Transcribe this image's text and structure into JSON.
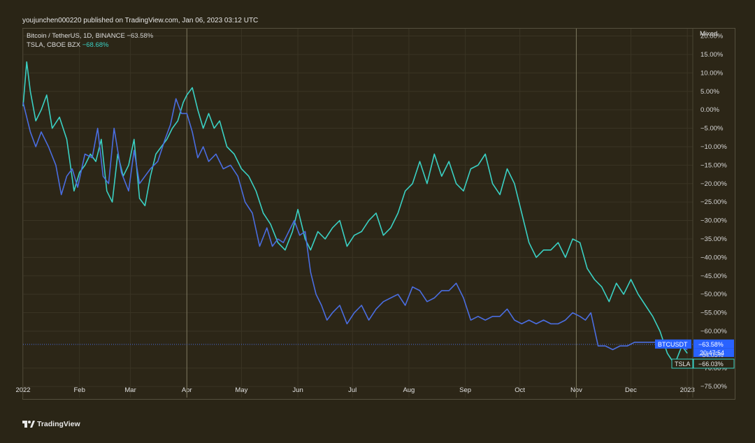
{
  "publisher": "youjunchen000220 published on TradingView.com, Jan 06, 2023 03:12 UTC",
  "scale_mode": "Mixed",
  "brand": "TradingView",
  "legend": [
    {
      "name": "Bitcoin / TetherUS, 1D, BINANCE",
      "value": "−63.58%"
    },
    {
      "name": "TSLA, CBOE BZX",
      "value": "−68.68%"
    }
  ],
  "price_tags": [
    {
      "label": "BTCUSDT",
      "value": "−63.58%",
      "sub": "20:47:54",
      "color": "#2962ff"
    },
    {
      "label": "",
      "value": "−64.05%",
      "sub": "",
      "color": "#2a2516"
    },
    {
      "label": "TSLA",
      "value": "−66.03%",
      "sub": "",
      "color": "#3ad0c3"
    }
  ],
  "colors": {
    "background": "#2a2516",
    "btc": "#4a6de0",
    "tsla": "#3ad0c3",
    "grid": "#3a3424",
    "text": "#d8d8d8"
  },
  "chart_data": {
    "type": "line",
    "y_unit": "%",
    "ylim": [
      -78,
      22
    ],
    "xlim": [
      0,
      368
    ],
    "y_ticks": [
      "20.00%",
      "15.00%",
      "10.00%",
      "5.00%",
      "0.00%",
      "−5.00%",
      "−10.00%",
      "−15.00%",
      "−20.00%",
      "−25.00%",
      "−30.00%",
      "−35.00%",
      "−40.00%",
      "−45.00%",
      "−50.00%",
      "−55.00%",
      "−60.00%",
      "−70.00%",
      "−75.00%"
    ],
    "y_tick_values": [
      20,
      15,
      10,
      5,
      0,
      -5,
      -10,
      -15,
      -20,
      -25,
      -30,
      -35,
      -40,
      -45,
      -50,
      -55,
      -60,
      -70,
      -75
    ],
    "x_ticks": [
      "2022",
      "Feb",
      "Mar",
      "Apr",
      "May",
      "Jun",
      "Jul",
      "Aug",
      "Sep",
      "Oct",
      "Nov",
      "Dec",
      "2023"
    ],
    "x_tick_days": [
      0,
      31,
      59,
      90,
      120,
      151,
      181,
      212,
      243,
      273,
      304,
      334,
      365
    ],
    "grid": true,
    "crosshair_days": [
      90,
      304
    ],
    "series": [
      {
        "name": "Bitcoin / TetherUS",
        "color": "#4a6de0",
        "x": [
          0,
          4,
          7,
          10,
          14,
          18,
          21,
          24,
          27,
          30,
          34,
          38,
          41,
          44,
          47,
          50,
          54,
          58,
          61,
          64,
          67,
          70,
          74,
          78,
          81,
          84,
          87,
          90,
          93,
          96,
          99,
          102,
          106,
          110,
          114,
          118,
          122,
          126,
          130,
          134,
          137,
          140,
          143,
          146,
          149,
          152,
          155,
          158,
          161,
          164,
          167,
          170,
          174,
          178,
          182,
          186,
          190,
          194,
          198,
          202,
          206,
          210,
          214,
          218,
          222,
          226,
          230,
          234,
          238,
          242,
          246,
          250,
          254,
          258,
          262,
          266,
          270,
          274,
          278,
          282,
          286,
          290,
          294,
          298,
          302,
          306,
          309,
          312,
          316,
          320,
          324,
          328,
          332,
          336,
          340,
          344,
          348,
          352,
          356,
          360,
          365
        ],
        "y": [
          2,
          -6,
          -10,
          -6,
          -10,
          -15,
          -23,
          -18,
          -16,
          -21,
          -12,
          -13,
          -5,
          -18,
          -20,
          -5,
          -17,
          -22,
          -11,
          -20,
          -18,
          -16,
          -14,
          -8,
          -4,
          3,
          -1,
          -1,
          -6,
          -13,
          -10,
          -14,
          -12,
          -16,
          -15,
          -18,
          -25,
          -28,
          -37,
          -32,
          -37,
          -35,
          -36,
          -33,
          -30,
          -34,
          -33,
          -44,
          -50,
          -53,
          -57,
          -55,
          -53,
          -58,
          -55,
          -53,
          -57,
          -54,
          -52,
          -51,
          -50,
          -53,
          -48,
          -49,
          -52,
          -51,
          -49,
          -49,
          -47,
          -51,
          -57,
          -56,
          -57,
          -56,
          -56,
          -54,
          -57,
          -58,
          -57,
          -58,
          -57,
          -58,
          -58,
          -57,
          -55,
          -56,
          -57,
          -55,
          -64,
          -64,
          -65,
          -64,
          -64,
          -63,
          -63,
          -63,
          -63,
          -63,
          -63,
          -64,
          -65
        ]
      },
      {
        "name": "TSLA",
        "color": "#3ad0c3",
        "x": [
          0,
          2,
          4,
          7,
          10,
          13,
          16,
          20,
          24,
          28,
          31,
          34,
          37,
          40,
          43,
          46,
          49,
          52,
          55,
          58,
          61,
          64,
          67,
          70,
          73,
          76,
          79,
          82,
          85,
          88,
          90,
          93,
          96,
          99,
          102,
          105,
          108,
          112,
          116,
          120,
          124,
          128,
          132,
          136,
          140,
          144,
          148,
          151,
          155,
          158,
          162,
          166,
          170,
          174,
          178,
          182,
          186,
          190,
          194,
          198,
          202,
          206,
          210,
          214,
          218,
          222,
          226,
          230,
          234,
          238,
          242,
          246,
          250,
          254,
          258,
          262,
          266,
          270,
          274,
          278,
          282,
          286,
          290,
          294,
          298,
          302,
          306,
          310,
          314,
          318,
          322,
          326,
          330,
          334,
          338,
          342,
          346,
          350,
          354,
          358,
          362,
          365
        ],
        "y": [
          1,
          13,
          5,
          -3,
          0,
          4,
          -5,
          -2,
          -8,
          -22,
          -17,
          -15,
          -12,
          -14,
          -8,
          -22,
          -25,
          -12,
          -18,
          -15,
          -8,
          -24,
          -26,
          -18,
          -12,
          -10,
          -8,
          -5,
          -3,
          2,
          4,
          6,
          0,
          -5,
          -1,
          -5,
          -3,
          -10,
          -12,
          -16,
          -18,
          -22,
          -28,
          -31,
          -36,
          -38,
          -33,
          -27,
          -35,
          -38,
          -33,
          -35,
          -32,
          -30,
          -37,
          -34,
          -33,
          -30,
          -28,
          -34,
          -32,
          -28,
          -22,
          -20,
          -14,
          -20,
          -12,
          -18,
          -14,
          -20,
          -22,
          -16,
          -15,
          -12,
          -20,
          -23,
          -16,
          -20,
          -28,
          -36,
          -40,
          -38,
          -38,
          -36,
          -40,
          -35,
          -36,
          -43,
          -46,
          -48,
          -52,
          -47,
          -50,
          -46,
          -50,
          -53,
          -56,
          -60,
          -66,
          -69,
          -64,
          -66
        ]
      }
    ]
  }
}
